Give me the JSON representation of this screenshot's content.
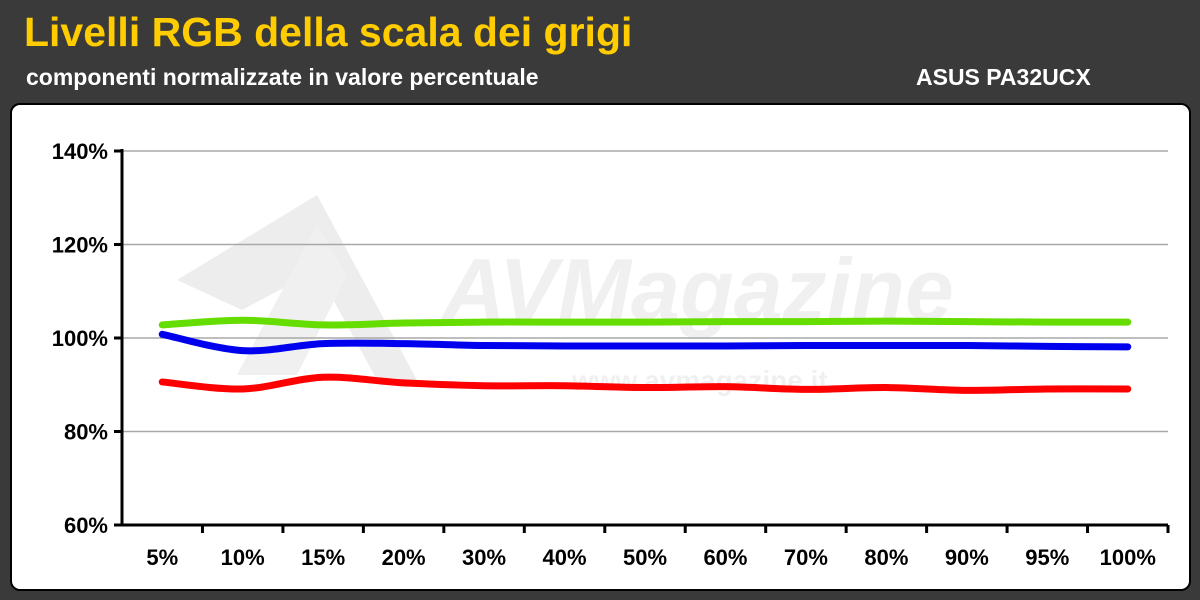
{
  "header": {
    "title": "Livelli RGB della scala dei grigi",
    "subtitle": "componenti normalizzate in valore percentuale",
    "model": "ASUS PA32UCX"
  },
  "watermark": {
    "brand": "AVMagazine",
    "url": "www.avmagazine.it"
  },
  "chart_data": {
    "type": "line",
    "title": "Livelli RGB della scala dei grigi",
    "subtitle": "componenti normalizzate in valore percentuale",
    "categories": [
      "5%",
      "10%",
      "15%",
      "20%",
      "30%",
      "40%",
      "50%",
      "60%",
      "70%",
      "80%",
      "90%",
      "95%",
      "100%"
    ],
    "y_ticks": [
      "60%",
      "80%",
      "100%",
      "120%",
      "140%"
    ],
    "ylim": [
      60,
      140
    ],
    "grid": true,
    "legend": "none",
    "series": [
      {
        "color": "#66dd00",
        "values": [
          102.8,
          103.8,
          102.8,
          103.2,
          103.4,
          103.4,
          103.4,
          103.5,
          103.5,
          103.6,
          103.5,
          103.4,
          103.4
        ]
      },
      {
        "color": "#0000ee",
        "values": [
          100.8,
          97.3,
          98.8,
          98.8,
          98.4,
          98.3,
          98.3,
          98.3,
          98.4,
          98.4,
          98.4,
          98.2,
          98.1
        ]
      },
      {
        "color": "#ff0000",
        "values": [
          90.6,
          89.1,
          91.6,
          90.4,
          89.8,
          89.8,
          89.4,
          89.6,
          89.0,
          89.4,
          88.8,
          89.1,
          89.1
        ]
      }
    ]
  }
}
